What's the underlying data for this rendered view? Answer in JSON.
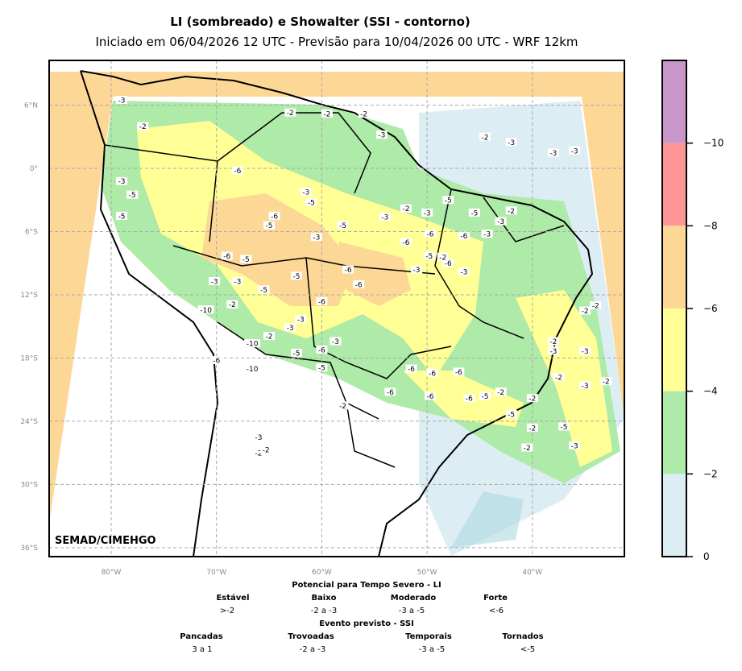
{
  "title": "LI (sombreado) e Showalter (SSI - contorno)",
  "subtitle": "Iniciado em 06/04/2026 12 UTC - Previsão para 10/04/2026 00 UTC - WRF 12km",
  "credit": "SEMAD/CIMEHGO",
  "lon_ticks": [
    "80°W",
    "70°W",
    "60°W",
    "50°W",
    "40°W"
  ],
  "lat_ticks": [
    "6°N",
    "0°",
    "6°S",
    "12°S",
    "18°S",
    "24°S",
    "30°S",
    "36°S"
  ],
  "colorbar": {
    "ticks": [
      "−10",
      "−8",
      "−6",
      "−4",
      "−2",
      "0"
    ],
    "colors": [
      "#c896c8",
      "#ff9696",
      "#fdd796",
      "#ffff96",
      "#aeeaa8",
      "#dcedf4"
    ]
  },
  "legend": {
    "li_title": "Potencial para Tempo Severo - LI",
    "li_categories": [
      {
        "name": "Estável",
        "range": ">-2"
      },
      {
        "name": "Baixo",
        "range": "-2 a -3"
      },
      {
        "name": "Moderado",
        "range": "-3 a -5"
      },
      {
        "name": "Forte",
        "range": "<-6"
      }
    ],
    "ssi_title": "Evento previsto - SSI",
    "ssi_categories": [
      {
        "name": "Pancadas",
        "range": "3 a 1"
      },
      {
        "name": "Trovoadas",
        "range": "-2 a -3"
      },
      {
        "name": "Temporais",
        "range": "-3 a -5"
      },
      {
        "name": "Tornados",
        "range": "<-5"
      }
    ]
  },
  "contour_labels": [
    {
      "v": "-3",
      "lon": -79,
      "lat": 6.5
    },
    {
      "v": "-2",
      "lon": -77,
      "lat": 4
    },
    {
      "v": "-2",
      "lon": -63,
      "lat": 5.3
    },
    {
      "v": "-2",
      "lon": -59.5,
      "lat": 5.2
    },
    {
      "v": "-2",
      "lon": -56,
      "lat": 5.2
    },
    {
      "v": "-3",
      "lon": -54.3,
      "lat": 3.2
    },
    {
      "v": "-2",
      "lon": -44.5,
      "lat": 3
    },
    {
      "v": "-3",
      "lon": -42,
      "lat": 2.5
    },
    {
      "v": "-3",
      "lon": -38,
      "lat": 1.5
    },
    {
      "v": "-3",
      "lon": -36,
      "lat": 1.7
    },
    {
      "v": "-3",
      "lon": -79,
      "lat": -1.2
    },
    {
      "v": "-5",
      "lon": -78,
      "lat": -2.5
    },
    {
      "v": "-5",
      "lon": -79,
      "lat": -4.5
    },
    {
      "v": "-6",
      "lon": -68,
      "lat": -0.2
    },
    {
      "v": "-3",
      "lon": -61.5,
      "lat": -2.2
    },
    {
      "v": "-5",
      "lon": -61,
      "lat": -3.2
    },
    {
      "v": "-6",
      "lon": -64.5,
      "lat": -4.5
    },
    {
      "v": "-5",
      "lon": -65,
      "lat": -5.4
    },
    {
      "v": "-3",
      "lon": -60.5,
      "lat": -6.5
    },
    {
      "v": "-5",
      "lon": -58,
      "lat": -5.4
    },
    {
      "v": "-3",
      "lon": -54,
      "lat": -4.6
    },
    {
      "v": "-2",
      "lon": -52,
      "lat": -3.8
    },
    {
      "v": "-3",
      "lon": -50,
      "lat": -4.2
    },
    {
      "v": "-5",
      "lon": -48,
      "lat": -3
    },
    {
      "v": "-5",
      "lon": -45.5,
      "lat": -4.2
    },
    {
      "v": "-3",
      "lon": -43,
      "lat": -5
    },
    {
      "v": "-2",
      "lon": -42,
      "lat": -4
    },
    {
      "v": "-6",
      "lon": -52,
      "lat": -7
    },
    {
      "v": "-6",
      "lon": -49.7,
      "lat": -6.2
    },
    {
      "v": "-6",
      "lon": -46.5,
      "lat": -6.4
    },
    {
      "v": "-3",
      "lon": -44.3,
      "lat": -6.2
    },
    {
      "v": "-5",
      "lon": -49.8,
      "lat": -8.3
    },
    {
      "v": "-6",
      "lon": -48,
      "lat": -9
    },
    {
      "v": "-3",
      "lon": -51,
      "lat": -9.6
    },
    {
      "v": "-6",
      "lon": -57.5,
      "lat": -9.6
    },
    {
      "v": "-6",
      "lon": -56.5,
      "lat": -11
    },
    {
      "v": "-6",
      "lon": -69,
      "lat": -8.3
    },
    {
      "v": "-5",
      "lon": -67.2,
      "lat": -8.6
    },
    {
      "v": "-5",
      "lon": -62.4,
      "lat": -10.2
    },
    {
      "v": "-5",
      "lon": -65.5,
      "lat": -11.5
    },
    {
      "v": "-3",
      "lon": -70.2,
      "lat": -10.7
    },
    {
      "v": "-3",
      "lon": -68,
      "lat": -10.7
    },
    {
      "v": "-10",
      "lon": -71,
      "lat": -13.4
    },
    {
      "v": "-2",
      "lon": -68.5,
      "lat": -12.9
    },
    {
      "v": "-6",
      "lon": -60,
      "lat": -12.6
    },
    {
      "v": "-3",
      "lon": -62,
      "lat": -14.3
    },
    {
      "v": "-3",
      "lon": -63,
      "lat": -15.1
    },
    {
      "v": "-10",
      "lon": -66.6,
      "lat": -16.6
    },
    {
      "v": "-2",
      "lon": -65,
      "lat": -15.9
    },
    {
      "v": "-5",
      "lon": -62.4,
      "lat": -17.5
    },
    {
      "v": "-6",
      "lon": -60,
      "lat": -17.2
    },
    {
      "v": "-3",
      "lon": -58.7,
      "lat": -16.4
    },
    {
      "v": "-10",
      "lon": -66.6,
      "lat": -19
    },
    {
      "v": "-5",
      "lon": -60,
      "lat": -18.9
    },
    {
      "v": "-6",
      "lon": -70,
      "lat": -18.2
    },
    {
      "v": "-2",
      "lon": -58,
      "lat": -22.5
    },
    {
      "v": "-6",
      "lon": -53.5,
      "lat": -21.2
    },
    {
      "v": "-6",
      "lon": -51.5,
      "lat": -19
    },
    {
      "v": "-6",
      "lon": -49.5,
      "lat": -19.4
    },
    {
      "v": "-6",
      "lon": -47,
      "lat": -19.3
    },
    {
      "v": "-6",
      "lon": -49.7,
      "lat": -21.6
    },
    {
      "v": "-6",
      "lon": -46,
      "lat": -21.8
    },
    {
      "v": "-5",
      "lon": -44.5,
      "lat": -21.6
    },
    {
      "v": "-2",
      "lon": -43,
      "lat": -21.2
    },
    {
      "v": "-2",
      "lon": -40,
      "lat": -21.8
    },
    {
      "v": "-5",
      "lon": -42,
      "lat": -23.3
    },
    {
      "v": "-2",
      "lon": -40,
      "lat": -24.6
    },
    {
      "v": "-5",
      "lon": -37,
      "lat": -24.5
    },
    {
      "v": "-2",
      "lon": -40.5,
      "lat": -26.5
    },
    {
      "v": "-3",
      "lon": -36,
      "lat": -26.3
    },
    {
      "v": "-2",
      "lon": -38,
      "lat": -16.4
    },
    {
      "v": "-3",
      "lon": -38,
      "lat": -17.3
    },
    {
      "v": "-3",
      "lon": -35,
      "lat": -17.3
    },
    {
      "v": "-2",
      "lon": -37.5,
      "lat": -19.8
    },
    {
      "v": "-3",
      "lon": -35,
      "lat": -20.6
    },
    {
      "v": "-2",
      "lon": -33,
      "lat": -20.2
    },
    {
      "v": "-2",
      "lon": -35,
      "lat": -13.5
    },
    {
      "v": "-2",
      "lon": -34,
      "lat": -13
    },
    {
      "v": "-2",
      "lon": -48.5,
      "lat": -8.4
    },
    {
      "v": "-3",
      "lon": -46.5,
      "lat": -9.8
    },
    {
      "v": "-3",
      "lon": -66,
      "lat": -25.5
    },
    {
      "v": "-2",
      "lon": -66,
      "lat": -27
    },
    {
      "v": "-2",
      "lon": -65.3,
      "lat": -26.7
    }
  ]
}
